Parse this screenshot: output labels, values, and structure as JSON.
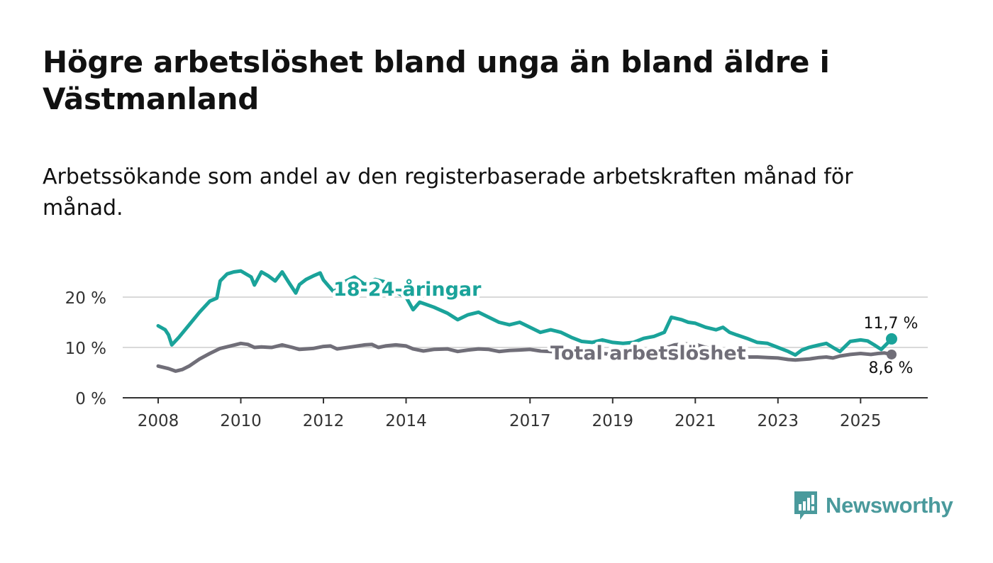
{
  "title": "Högre arbetslöshet bland unga än bland äldre i Västmanland",
  "subtitle": "Arbetssökande som andel av den registerbaserade arbetskraften månad för månad.",
  "brand": {
    "name": "Newsworthy",
    "icon": "bar-chart-logo-icon",
    "color": "#4a9a9c"
  },
  "colors": {
    "youth": "#1aa39a",
    "total": "#706e78",
    "axis": "#333333",
    "grid": "#d9d9d9"
  },
  "chart_data": {
    "type": "line",
    "x_unit": "year (decimal)",
    "xlim": [
      2008,
      2025.75
    ],
    "ylim": [
      0,
      30
    ],
    "y_ticks": [
      0,
      10,
      20
    ],
    "y_tick_labels": [
      "0 %",
      "10 %",
      "20 %"
    ],
    "x_ticks": [
      2008,
      2010,
      2012,
      2014,
      2017,
      2019,
      2021,
      2023,
      2025
    ],
    "x_tick_labels": [
      "2008",
      "2010",
      "2012",
      "2014",
      "2017",
      "2019",
      "2021",
      "2023",
      "2025"
    ],
    "grid": "horizontal",
    "series": [
      {
        "name": "18-24-åringar",
        "label": "18-24-åringar",
        "color": "#1aa39a",
        "end_label": "11,7 %",
        "x": [
          2008.0,
          2008.17,
          2008.25,
          2008.33,
          2008.5,
          2008.75,
          2009.0,
          2009.25,
          2009.42,
          2009.5,
          2009.67,
          2009.83,
          2010.0,
          2010.25,
          2010.33,
          2010.5,
          2010.67,
          2010.83,
          2011.0,
          2011.17,
          2011.33,
          2011.42,
          2011.58,
          2011.75,
          2011.92,
          2012.0,
          2012.25,
          2012.5,
          2012.75,
          2013.0,
          2013.25,
          2013.5,
          2013.75,
          2014.0,
          2014.17,
          2014.33,
          2014.5,
          2014.67,
          2015.0,
          2015.25,
          2015.5,
          2015.75,
          2016.0,
          2016.25,
          2016.5,
          2016.75,
          2017.0,
          2017.25,
          2017.5,
          2017.75,
          2018.0,
          2018.25,
          2018.5,
          2018.75,
          2019.0,
          2019.25,
          2019.5,
          2019.75,
          2020.0,
          2020.25,
          2020.42,
          2020.67,
          2020.83,
          2021.0,
          2021.25,
          2021.5,
          2021.67,
          2021.83,
          2022.0,
          2022.25,
          2022.5,
          2022.75,
          2023.0,
          2023.25,
          2023.42,
          2023.58,
          2023.75,
          2024.0,
          2024.17,
          2024.33,
          2024.5,
          2024.75,
          2025.0,
          2025.17,
          2025.33,
          2025.5,
          2025.67,
          2025.75
        ],
        "values": [
          14.3,
          13.5,
          12.5,
          10.5,
          12.0,
          14.5,
          17.0,
          19.2,
          19.8,
          23.2,
          24.6,
          25.0,
          25.2,
          24.0,
          22.4,
          25.0,
          24.2,
          23.2,
          25.0,
          22.8,
          20.8,
          22.5,
          23.5,
          24.2,
          24.8,
          23.4,
          21.0,
          23.0,
          24.0,
          22.5,
          23.5,
          23.0,
          21.0,
          20.0,
          17.5,
          19.0,
          18.5,
          18.0,
          16.8,
          15.5,
          16.5,
          17.0,
          16.0,
          15.0,
          14.5,
          15.0,
          14.0,
          13.0,
          13.5,
          13.0,
          12.0,
          11.2,
          11.0,
          11.5,
          11.0,
          10.8,
          11.0,
          11.8,
          12.2,
          13.0,
          16.0,
          15.5,
          15.0,
          14.8,
          14.0,
          13.5,
          14.0,
          13.0,
          12.5,
          11.8,
          11.0,
          10.8,
          10.0,
          9.2,
          8.5,
          9.5,
          10.0,
          10.5,
          10.8,
          10.0,
          9.2,
          11.2,
          11.5,
          11.3,
          10.5,
          9.6,
          11.0,
          11.7
        ]
      },
      {
        "name": "Total arbetslöshet",
        "label": "Total arbetslöshet",
        "color": "#706e78",
        "end_label": "8,6 %",
        "x": [
          2008.0,
          2008.25,
          2008.42,
          2008.58,
          2008.75,
          2009.0,
          2009.25,
          2009.5,
          2009.75,
          2010.0,
          2010.17,
          2010.33,
          2010.5,
          2010.75,
          2011.0,
          2011.25,
          2011.42,
          2011.58,
          2011.75,
          2012.0,
          2012.17,
          2012.33,
          2012.5,
          2012.75,
          2013.0,
          2013.17,
          2013.33,
          2013.5,
          2013.75,
          2014.0,
          2014.17,
          2014.42,
          2014.67,
          2015.0,
          2015.25,
          2015.5,
          2015.75,
          2016.0,
          2016.25,
          2016.5,
          2016.75,
          2017.0,
          2017.25,
          2017.5,
          2017.75,
          2018.0,
          2018.25,
          2018.5,
          2018.75,
          2019.0,
          2019.25,
          2019.5,
          2019.75,
          2020.0,
          2020.25,
          2020.5,
          2020.75,
          2021.0,
          2021.25,
          2021.5,
          2021.75,
          2022.0,
          2022.25,
          2022.5,
          2022.75,
          2023.0,
          2023.25,
          2023.42,
          2023.58,
          2023.75,
          2024.0,
          2024.17,
          2024.33,
          2024.5,
          2024.75,
          2025.0,
          2025.25,
          2025.42,
          2025.58,
          2025.75
        ],
        "values": [
          6.3,
          5.8,
          5.3,
          5.6,
          6.3,
          7.7,
          8.8,
          9.8,
          10.3,
          10.8,
          10.6,
          10.0,
          10.1,
          10.0,
          10.5,
          10.0,
          9.6,
          9.7,
          9.8,
          10.2,
          10.3,
          9.7,
          9.9,
          10.2,
          10.5,
          10.6,
          10.0,
          10.3,
          10.5,
          10.3,
          9.7,
          9.3,
          9.6,
          9.7,
          9.2,
          9.5,
          9.7,
          9.6,
          9.2,
          9.4,
          9.5,
          9.6,
          9.3,
          9.2,
          9.0,
          8.9,
          8.6,
          8.7,
          8.8,
          8.6,
          8.7,
          8.9,
          9.0,
          9.2,
          9.8,
          10.5,
          10.7,
          10.6,
          10.0,
          9.6,
          9.3,
          9.0,
          8.1,
          8.1,
          8.0,
          7.9,
          7.6,
          7.5,
          7.6,
          7.7,
          8.0,
          8.1,
          7.9,
          8.3,
          8.6,
          8.8,
          8.6,
          8.8,
          8.9,
          8.6
        ]
      }
    ]
  }
}
